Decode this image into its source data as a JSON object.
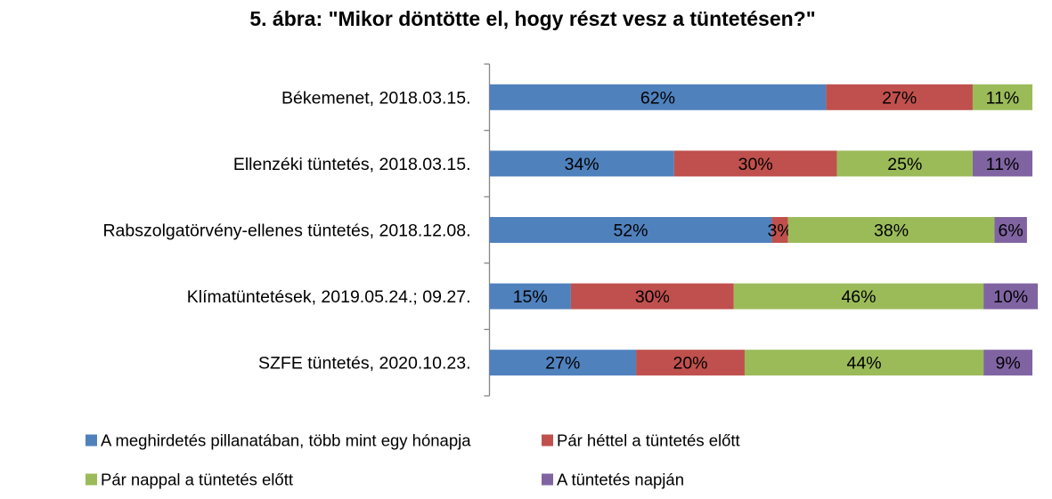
{
  "chart_data": {
    "type": "bar",
    "orientation": "horizontal",
    "stacked": true,
    "title": "5. ábra: \"Mikor döntötte el, hogy részt vesz a tüntetésen?\"",
    "categories": [
      "Békemenet, 2018.03.15.",
      "Ellenzéki tüntetés, 2018.03.15.",
      "Rabszolgatörvény-ellenes tüntetés, 2018.12.08.",
      "Klímatüntetések, 2019.05.24.; 09.27.",
      "SZFE tüntetés, 2020.10.23."
    ],
    "series": [
      {
        "name": "A meghirdetés pillanatában, több mint egy hónapja",
        "color": "#4F81BD",
        "values": [
          62,
          34,
          52,
          15,
          27
        ]
      },
      {
        "name": "Pár héttel a tüntetés előtt",
        "color": "#C0504D",
        "values": [
          27,
          30,
          3,
          30,
          20
        ]
      },
      {
        "name": "Pár nappal a tüntetés előtt",
        "color": "#9BBB59",
        "values": [
          11,
          25,
          38,
          46,
          44
        ]
      },
      {
        "name": "A tüntetés napján",
        "color": "#8064A2",
        "values": [
          0,
          11,
          6,
          10,
          9
        ]
      }
    ],
    "value_format": "{v}%",
    "xlim": [
      0,
      100
    ],
    "grid": false,
    "legend_position": "bottom"
  }
}
